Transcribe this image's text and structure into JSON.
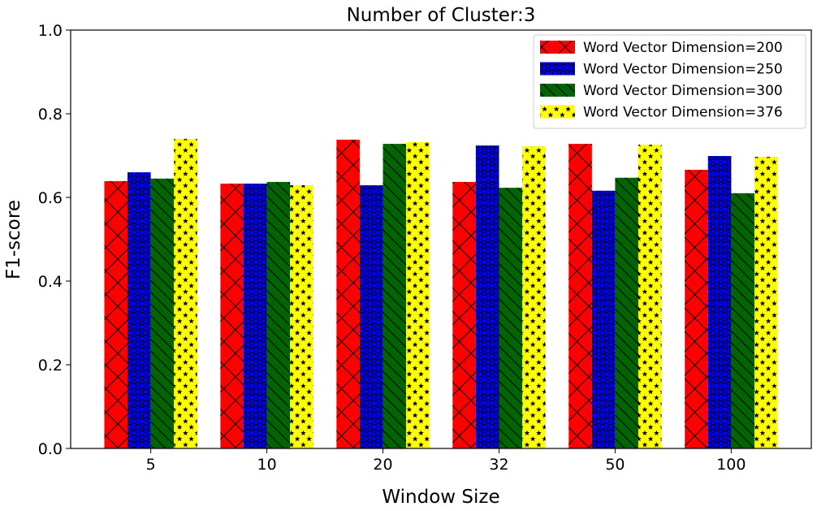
{
  "chart_data": {
    "type": "bar",
    "title": "Number of Cluster:3",
    "xlabel": "Window Size",
    "ylabel": "F1-score",
    "categories": [
      "5",
      "10",
      "20",
      "32",
      "50",
      "100"
    ],
    "ylim": [
      0,
      1.0
    ],
    "yticks": [
      "0.0",
      "0.2",
      "0.4",
      "0.6",
      "0.8",
      "1.0"
    ],
    "grid": false,
    "legend_position": "top-right",
    "series": [
      {
        "name": "Word Vector Dimension=200",
        "color": "#ff0000",
        "hatch": "x",
        "values": [
          0.639,
          0.633,
          0.738,
          0.637,
          0.728,
          0.666
        ]
      },
      {
        "name": "Word Vector Dimension=250",
        "color": "#0000ff",
        "hatch": "o",
        "values": [
          0.66,
          0.633,
          0.629,
          0.724,
          0.616,
          0.699
        ]
      },
      {
        "name": "Word Vector Dimension=300",
        "color": "#006400",
        "hatch": "\\",
        "values": [
          0.645,
          0.637,
          0.728,
          0.623,
          0.647,
          0.61
        ]
      },
      {
        "name": "Word Vector Dimension=376",
        "color": "#ffff00",
        "hatch": "*",
        "values": [
          0.74,
          0.629,
          0.732,
          0.722,
          0.726,
          0.697
        ]
      }
    ]
  }
}
